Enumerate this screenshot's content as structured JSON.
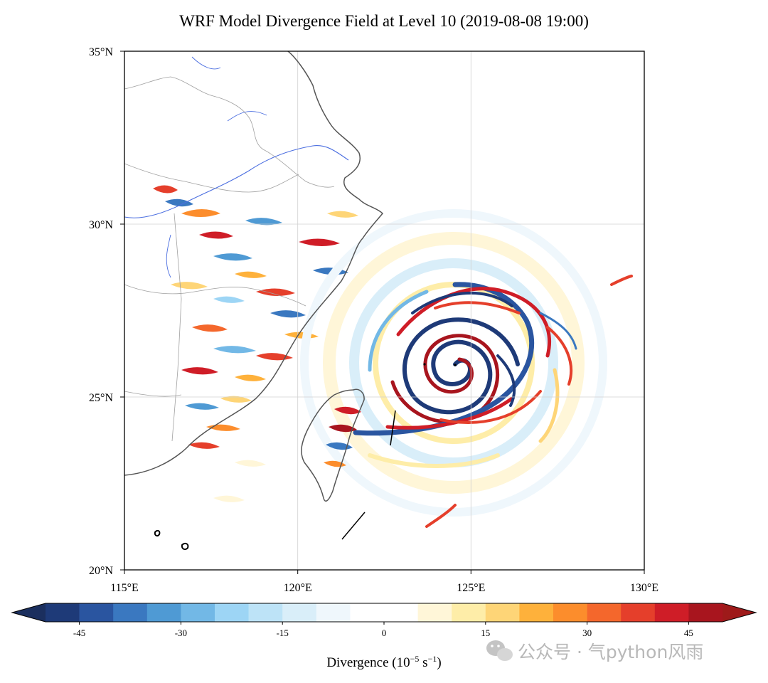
{
  "chart_data": {
    "type": "heatmap",
    "title": "WRF Model Divergence Field at Level 10 (2019-08-08 19:00)",
    "map_projection": "PlateCarree",
    "x_axis": {
      "label": "",
      "range": [
        115,
        130
      ],
      "tick_values": [
        115,
        120,
        125,
        130
      ],
      "tick_labels": [
        "115°E",
        "120°E",
        "125°E",
        "130°E"
      ]
    },
    "y_axis": {
      "label": "",
      "range": [
        20,
        35
      ],
      "tick_values": [
        20,
        25,
        30,
        35
      ],
      "tick_labels": [
        "20°N",
        "25°N",
        "30°N",
        "35°N"
      ]
    },
    "grid": true,
    "field": "Divergence",
    "features": {
      "cyclone_center": {
        "lon": 124.3,
        "lat": 26.0
      },
      "cross_section_lines": [
        {
          "lon": [
            122.8,
            122.6
          ],
          "lat": [
            24.7,
            23.7
          ]
        },
        {
          "lon": [
            122.0,
            121.3
          ],
          "lat": [
            21.8,
            21.0
          ]
        }
      ]
    },
    "colorbar": {
      "label_main": "Divergence (10",
      "label_exp1": "−5",
      "label_mid": " s",
      "label_exp2": "−1",
      "label_end": ")",
      "extend": "both",
      "levels": [
        -50,
        -45,
        -40,
        -35,
        -30,
        -25,
        -20,
        -15,
        -10,
        -5,
        5,
        10,
        15,
        20,
        25,
        30,
        35,
        40,
        45,
        50
      ],
      "colors": [
        "#1e3a78",
        "#2a55a0",
        "#3a78c0",
        "#4f9ad4",
        "#72b8e6",
        "#9dd5f5",
        "#bde3f7",
        "#d9eef9",
        "#eff7fc",
        "#ffffff",
        "#fff6d8",
        "#feeda8",
        "#fed577",
        "#feb13b",
        "#fc8d2c",
        "#f4672c",
        "#e53f2b",
        "#cf1d27",
        "#a8151e"
      ],
      "extend_low_color": "#1b2f5e",
      "extend_high_color": "#9e1a1a",
      "tick_values": [
        -45,
        -30,
        -15,
        0,
        15,
        30,
        45
      ],
      "tick_labels": [
        "-45",
        "-30",
        "-15",
        "0",
        "15",
        "30",
        "45"
      ]
    }
  },
  "watermark": {
    "text": "公众号 · 气python风雨",
    "icon": "wechat-icon"
  }
}
